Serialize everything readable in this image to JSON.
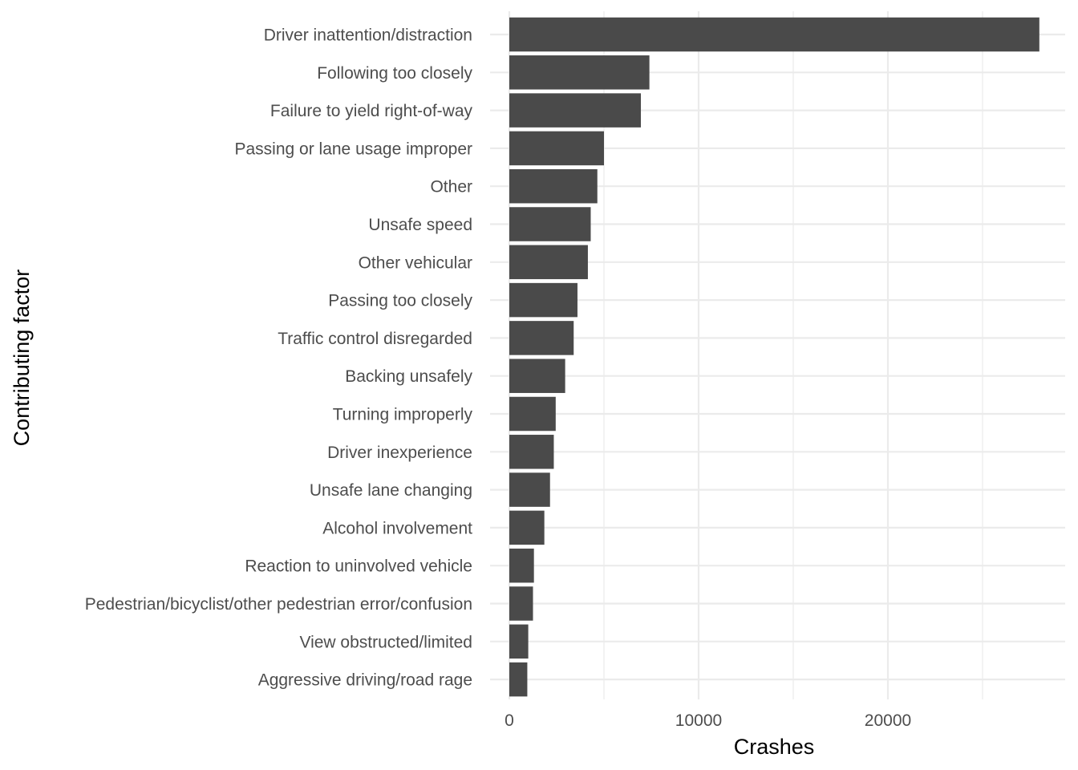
{
  "chart_data": {
    "type": "bar",
    "orientation": "horizontal",
    "title": "",
    "xlabel": "Crashes",
    "ylabel": "Contributing factor",
    "xlim": [
      0,
      29400
    ],
    "x_major_ticks": [
      0,
      10000,
      20000
    ],
    "x_minor_ticks": [
      5000,
      15000,
      25000
    ],
    "grid": true,
    "bar_color": "#4a4a4a",
    "grid_color": "#ebebeb",
    "categories": [
      "Driver inattention/distraction",
      "Following too closely",
      "Failure to yield right-of-way",
      "Passing or lane usage improper",
      "Other",
      "Unsafe speed",
      "Other vehicular",
      "Passing too closely",
      "Traffic control disregarded",
      "Backing unsafely",
      "Turning improperly",
      "Driver inexperience",
      "Unsafe lane changing",
      "Alcohol involvement",
      "Reaction to uninvolved vehicle",
      "Pedestrian/bicyclist/other pedestrian error/confusion",
      "View obstructed/limited",
      "Aggressive driving/road rage"
    ],
    "values": [
      28000,
      7400,
      6950,
      5000,
      4650,
      4300,
      4150,
      3600,
      3400,
      2950,
      2450,
      2350,
      2150,
      1850,
      1300,
      1250,
      1000,
      950
    ]
  }
}
